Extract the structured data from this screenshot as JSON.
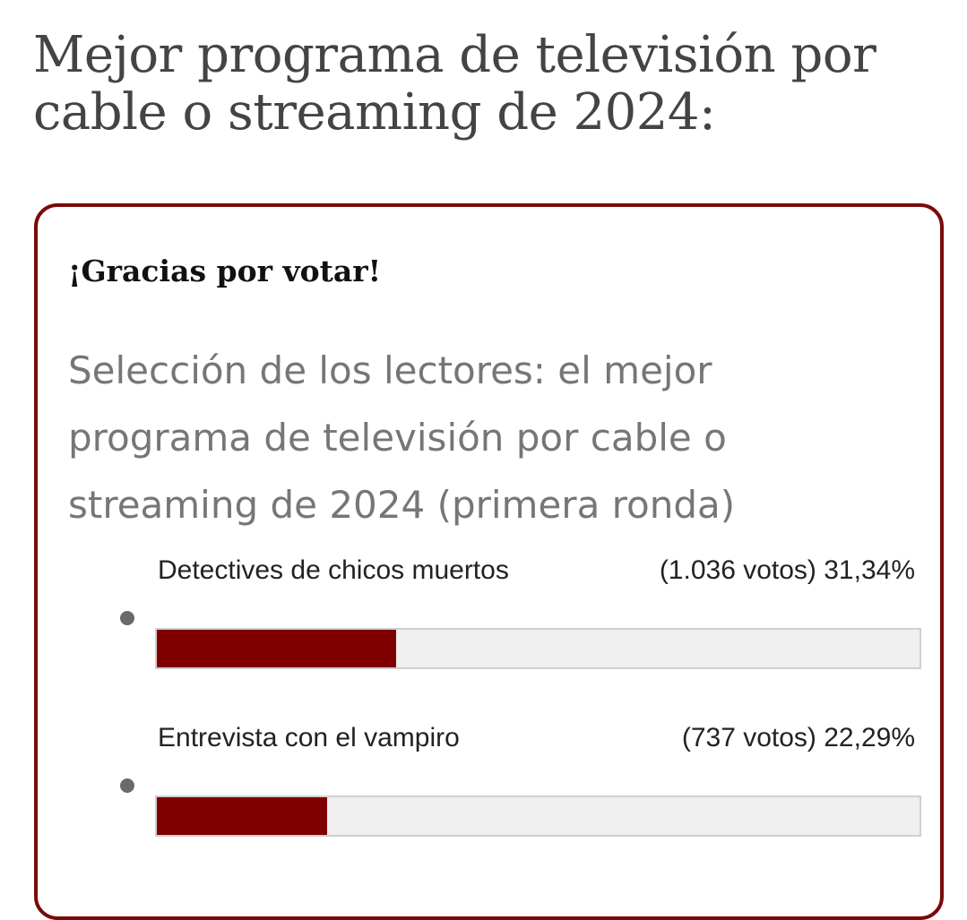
{
  "page": {
    "title": "Mejor programa de televisión por cable o streaming de 2024:"
  },
  "poll": {
    "thanks_message": "¡Gracias por votar!",
    "question": "Selección de los lectores: el mejor programa de televisión por cable o streaming de 2024 (primera ronda)",
    "bar_color": "#800000",
    "border_color": "#7a0a0a",
    "answers": [
      {
        "label": "Detectives de chicos muertos",
        "votes_text": "(1.036 votos)",
        "percent_text": "31,34%",
        "percent": 31.34
      },
      {
        "label": "Entrevista con el vampiro",
        "votes_text": "(737 votos)",
        "percent_text": "22,29%",
        "percent": 22.29
      }
    ]
  }
}
